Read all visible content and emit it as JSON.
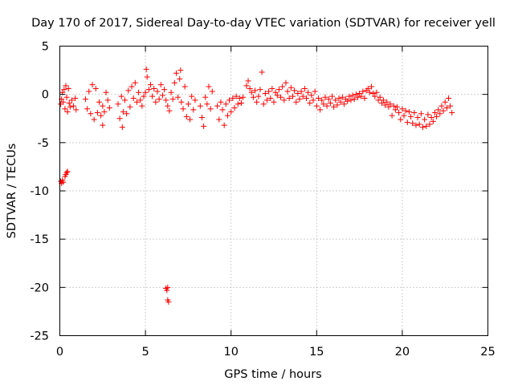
{
  "chart_data": {
    "type": "scatter",
    "title": "Day 170 of 2017, Sidereal Day-to-day VTEC variation (SDTVAR) for receiver yell",
    "xlabel": "GPS time / hours",
    "ylabel": "SDTVAR / TECUs",
    "xlim": [
      0,
      25
    ],
    "ylim": [
      -25,
      5
    ],
    "xticks": [
      0,
      5,
      10,
      15,
      20,
      25
    ],
    "yticks": [
      5,
      0,
      -5,
      -10,
      -15,
      -20,
      -25
    ],
    "xtick_labels": [
      "0",
      "5",
      "10",
      "15",
      "20",
      "25"
    ],
    "ytick_labels": [
      "5",
      "0",
      "-5",
      "-10",
      "-15",
      "-20",
      "-25"
    ],
    "grid": true,
    "marker": "+",
    "series": [
      {
        "name": "SDTVAR",
        "color": "#ff0000",
        "points": [
          [
            0.05,
            -1.0
          ],
          [
            0.1,
            -0.5
          ],
          [
            0.15,
            0.2
          ],
          [
            0.2,
            -0.8
          ],
          [
            0.25,
            0.5
          ],
          [
            0.3,
            -1.5
          ],
          [
            0.35,
            0.9
          ],
          [
            0.4,
            -0.3
          ],
          [
            0.45,
            -1.8
          ],
          [
            0.5,
            0.6
          ],
          [
            0.55,
            -0.9
          ],
          [
            0.6,
            -1.3
          ],
          [
            0.7,
            -0.6
          ],
          [
            0.8,
            -1.2
          ],
          [
            0.9,
            -0.4
          ],
          [
            0.95,
            -1.6
          ],
          [
            0.05,
            -9.0
          ],
          [
            0.1,
            -9.2
          ],
          [
            0.15,
            -8.9
          ],
          [
            0.2,
            -9.1
          ],
          [
            0.3,
            -8.5
          ],
          [
            0.35,
            -8.3
          ],
          [
            0.4,
            -8.1
          ],
          [
            0.45,
            -8.0
          ],
          [
            1.5,
            -0.5
          ],
          [
            1.6,
            -1.5
          ],
          [
            1.7,
            0.3
          ],
          [
            1.8,
            -2.0
          ],
          [
            1.9,
            1.0
          ],
          [
            2.0,
            -2.6
          ],
          [
            2.1,
            0.6
          ],
          [
            2.2,
            -1.9
          ],
          [
            2.3,
            -0.8
          ],
          [
            2.4,
            -2.2
          ],
          [
            2.5,
            -1.2
          ],
          [
            2.6,
            -1.8
          ],
          [
            2.5,
            -3.2
          ],
          [
            2.7,
            0.2
          ],
          [
            2.8,
            -0.6
          ],
          [
            2.9,
            -1.4
          ],
          [
            3.4,
            -1.0
          ],
          [
            3.5,
            -2.5
          ],
          [
            3.6,
            -0.2
          ],
          [
            3.65,
            -3.4
          ],
          [
            3.7,
            -1.8
          ],
          [
            3.8,
            -0.6
          ],
          [
            3.9,
            -2.0
          ],
          [
            4.0,
            0.4
          ],
          [
            4.1,
            -1.3
          ],
          [
            4.2,
            0.8
          ],
          [
            4.3,
            -0.4
          ],
          [
            4.4,
            1.2
          ],
          [
            4.5,
            -0.8
          ],
          [
            4.6,
            0.2
          ],
          [
            4.7,
            -0.6
          ],
          [
            4.8,
            -1.2
          ],
          [
            4.9,
            -0.2
          ],
          [
            5.0,
            0.2
          ],
          [
            5.05,
            2.6
          ],
          [
            5.1,
            1.8
          ],
          [
            5.2,
            0.5
          ],
          [
            5.3,
            1.0
          ],
          [
            5.4,
            -0.2
          ],
          [
            5.5,
            0.6
          ],
          [
            5.6,
            -0.8
          ],
          [
            5.7,
            0.3
          ],
          [
            5.8,
            -0.5
          ],
          [
            5.9,
            1.0
          ],
          [
            6.0,
            -0.1
          ],
          [
            6.1,
            0.5
          ],
          [
            6.2,
            -0.6
          ],
          [
            6.3,
            -1.2
          ],
          [
            6.4,
            -1.7
          ],
          [
            6.5,
            0.2
          ],
          [
            6.6,
            -0.5
          ],
          [
            6.7,
            1.2
          ],
          [
            6.8,
            2.2
          ],
          [
            6.9,
            -0.3
          ],
          [
            7.0,
            1.6
          ],
          [
            7.05,
            2.5
          ],
          [
            7.1,
            -0.8
          ],
          [
            7.2,
            -1.5
          ],
          [
            7.3,
            0.8
          ],
          [
            7.4,
            -2.3
          ],
          [
            7.5,
            -1.0
          ],
          [
            7.6,
            -2.6
          ],
          [
            7.7,
            -0.2
          ],
          [
            7.8,
            -1.6
          ],
          [
            7.9,
            -0.6
          ],
          [
            8.2,
            -1.2
          ],
          [
            8.3,
            -2.4
          ],
          [
            8.4,
            -3.3
          ],
          [
            8.5,
            -0.3
          ],
          [
            8.6,
            -1.0
          ],
          [
            8.7,
            0.8
          ],
          [
            8.8,
            -1.5
          ],
          [
            8.9,
            0.3
          ],
          [
            9.2,
            -1.2
          ],
          [
            9.3,
            -2.6
          ],
          [
            9.4,
            -0.8
          ],
          [
            9.5,
            -1.6
          ],
          [
            9.6,
            -3.2
          ],
          [
            9.7,
            -1.0
          ],
          [
            9.8,
            -2.2
          ],
          [
            9.9,
            -0.6
          ],
          [
            10.0,
            -1.8
          ],
          [
            10.1,
            -0.4
          ],
          [
            10.2,
            -1.4
          ],
          [
            10.3,
            -0.2
          ],
          [
            10.4,
            -1.0
          ],
          [
            10.5,
            -0.4
          ],
          [
            10.6,
            -0.9
          ],
          [
            10.7,
            -0.3
          ],
          [
            10.9,
            0.9
          ],
          [
            11.0,
            1.4
          ],
          [
            11.1,
            0.6
          ],
          [
            11.2,
            0.2
          ],
          [
            11.3,
            -0.3
          ],
          [
            11.4,
            0.4
          ],
          [
            11.5,
            -0.8
          ],
          [
            11.6,
            -0.2
          ],
          [
            11.7,
            0.5
          ],
          [
            11.8,
            2.3
          ],
          [
            11.9,
            -1.0
          ],
          [
            12.0,
            0.1
          ],
          [
            12.1,
            -0.6
          ],
          [
            12.2,
            0.3
          ],
          [
            12.3,
            -0.4
          ],
          [
            12.4,
            0.6
          ],
          [
            12.5,
            -0.8
          ],
          [
            12.6,
            0.2
          ],
          [
            12.7,
            -0.1
          ],
          [
            12.8,
            0.5
          ],
          [
            12.9,
            -0.3
          ],
          [
            13.0,
            0.8
          ],
          [
            13.1,
            -0.6
          ],
          [
            13.2,
            1.2
          ],
          [
            13.3,
            0.3
          ],
          [
            13.4,
            -0.4
          ],
          [
            13.5,
            0.7
          ],
          [
            13.6,
            -0.2
          ],
          [
            13.7,
            0.4
          ],
          [
            13.8,
            -0.8
          ],
          [
            13.9,
            0.1
          ],
          [
            14.0,
            -0.5
          ],
          [
            14.1,
            0.3
          ],
          [
            14.2,
            -0.2
          ],
          [
            14.3,
            0.6
          ],
          [
            14.4,
            -0.4
          ],
          [
            14.5,
            0.2
          ],
          [
            14.6,
            -0.9
          ],
          [
            14.7,
            -0.1
          ],
          [
            14.8,
            -0.6
          ],
          [
            14.9,
            0.3
          ],
          [
            15.0,
            -1.2
          ],
          [
            15.1,
            -0.4
          ],
          [
            15.2,
            -1.6
          ],
          [
            15.3,
            -0.6
          ],
          [
            15.4,
            -1.0
          ],
          [
            15.5,
            -0.3
          ],
          [
            15.6,
            -1.2
          ],
          [
            15.7,
            -0.5
          ],
          [
            15.8,
            -0.9
          ],
          [
            15.9,
            -0.2
          ],
          [
            16.0,
            -1.3
          ],
          [
            16.1,
            -0.6
          ],
          [
            16.2,
            -1.1
          ],
          [
            16.3,
            -0.4
          ],
          [
            16.4,
            -0.8
          ],
          [
            16.5,
            -0.3
          ],
          [
            16.6,
            -1.0
          ],
          [
            16.7,
            -0.5
          ],
          [
            16.8,
            -0.7
          ],
          [
            16.9,
            -0.2
          ],
          [
            17.0,
            -0.6
          ],
          [
            17.1,
            -0.1
          ],
          [
            17.2,
            -0.5
          ],
          [
            17.3,
            0.0
          ],
          [
            17.4,
            -0.3
          ],
          [
            17.5,
            0.1
          ],
          [
            17.6,
            -0.2
          ],
          [
            17.7,
            0.3
          ],
          [
            17.8,
            -0.4
          ],
          [
            17.9,
            0.4
          ],
          [
            18.0,
            0.6
          ],
          [
            18.1,
            0.2
          ],
          [
            18.2,
            0.8
          ],
          [
            18.3,
            0.1
          ],
          [
            18.4,
            -0.2
          ],
          [
            18.5,
            0.2
          ],
          [
            18.6,
            -0.6
          ],
          [
            18.7,
            -0.3
          ],
          [
            18.8,
            -0.9
          ],
          [
            18.9,
            -0.6
          ],
          [
            19.0,
            -1.1
          ],
          [
            19.1,
            -0.8
          ],
          [
            19.2,
            -1.3
          ],
          [
            19.3,
            -1.0
          ],
          [
            19.4,
            -2.2
          ],
          [
            19.5,
            -1.2
          ],
          [
            19.6,
            -1.6
          ],
          [
            19.7,
            -1.3
          ],
          [
            19.8,
            -1.9
          ],
          [
            19.9,
            -2.6
          ],
          [
            20.0,
            -1.5
          ],
          [
            20.1,
            -2.2
          ],
          [
            20.2,
            -1.7
          ],
          [
            20.3,
            -2.9
          ],
          [
            20.4,
            -1.8
          ],
          [
            20.5,
            -2.3
          ],
          [
            20.6,
            -3.0
          ],
          [
            20.7,
            -1.9
          ],
          [
            20.8,
            -3.2
          ],
          [
            20.9,
            -2.4
          ],
          [
            21.0,
            -3.1
          ],
          [
            21.1,
            -2.0
          ],
          [
            21.2,
            -3.4
          ],
          [
            21.3,
            -2.6
          ],
          [
            21.4,
            -3.3
          ],
          [
            21.5,
            -2.1
          ],
          [
            21.6,
            -3.1
          ],
          [
            21.7,
            -2.4
          ],
          [
            21.8,
            -2.8
          ],
          [
            21.9,
            -1.9
          ],
          [
            22.0,
            -2.3
          ],
          [
            22.1,
            -1.6
          ],
          [
            22.2,
            -2.0
          ],
          [
            22.3,
            -1.2
          ],
          [
            22.4,
            -1.7
          ],
          [
            22.5,
            -0.8
          ],
          [
            22.6,
            -1.4
          ],
          [
            22.7,
            -0.4
          ],
          [
            22.8,
            -1.2
          ],
          [
            22.9,
            -1.9
          ],
          [
            6.2,
            -20.1
          ],
          [
            6.25,
            -20.3
          ],
          [
            6.3,
            -21.3
          ],
          [
            6.35,
            -21.5
          ],
          [
            6.3,
            -20.0
          ]
        ]
      }
    ]
  }
}
